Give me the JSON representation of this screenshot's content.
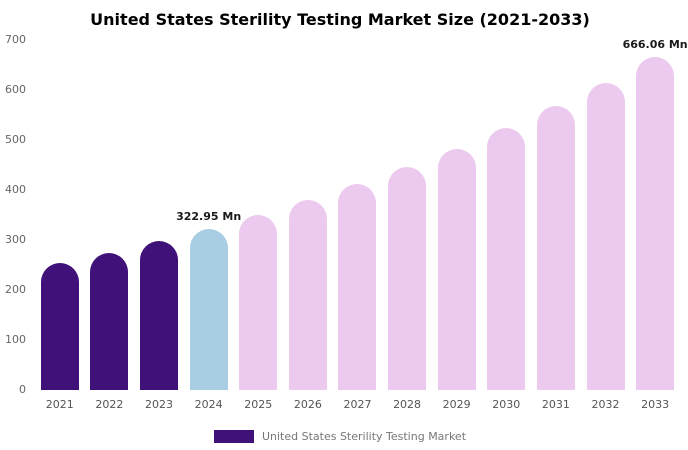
{
  "chart_data": {
    "type": "bar",
    "title": "United States Sterility Testing Market Size (2021-2033)",
    "xlabel": "",
    "ylabel": "",
    "unit": "Mn",
    "categories": [
      "2021",
      "2022",
      "2023",
      "2024",
      "2025",
      "2026",
      "2027",
      "2028",
      "2029",
      "2030",
      "2031",
      "2032",
      "2033"
    ],
    "values": [
      253.5,
      274.8,
      297.9,
      322.95,
      350.0,
      379.4,
      411.2,
      445.6,
      483.0,
      523.5,
      567.4,
      614.9,
      666.06
    ],
    "ylim": [
      0,
      700
    ],
    "yticks": [
      0,
      100,
      200,
      300,
      400,
      500,
      600,
      700
    ],
    "grid": false,
    "legend_position": "bottom",
    "bar_colors": [
      "#41117A",
      "#41117A",
      "#41117A",
      "#A9CEE4",
      "#ECC9EE",
      "#ECC9EE",
      "#ECC9EE",
      "#ECC9EE",
      "#ECC9EE",
      "#ECC9EE",
      "#ECC9EE",
      "#ECC9EE",
      "#ECC9EE"
    ],
    "annotations": [
      {
        "category": "2024",
        "text": "322.95 Mn"
      },
      {
        "category": "2033",
        "text": "666.06 Mn"
      }
    ],
    "legend": [
      {
        "label": "United States Sterility Testing Market",
        "color": "#41117A"
      }
    ]
  }
}
